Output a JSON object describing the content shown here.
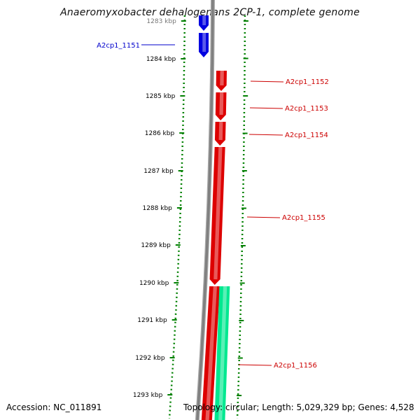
{
  "title": "Anaeromyxobacter dehalogenans 2CP-1, complete genome",
  "footer": {
    "accession_label": "Accession:",
    "accession": "NC_011891",
    "topology_label": "Topology:",
    "topology": "circular",
    "length_label": "Length:",
    "length": "5,029,329 bp",
    "genes_label": "Genes:",
    "genes": "4,528"
  },
  "scale": {
    "unit": "kbp",
    "ticks": [
      {
        "label": "1283 kbp",
        "partial": true
      },
      {
        "label": "1284 kbp"
      },
      {
        "label": "1285 kbp"
      },
      {
        "label": "1286 kbp"
      },
      {
        "label": "1287 kbp"
      },
      {
        "label": "1288 kbp"
      },
      {
        "label": "1289 kbp"
      },
      {
        "label": "1290 kbp"
      },
      {
        "label": "1291 kbp"
      },
      {
        "label": "1292 kbp"
      },
      {
        "label": "1293 kbp"
      }
    ]
  },
  "genes_list": [
    {
      "name": "A2cp1_1151",
      "strand": "reverse",
      "color": "#0000e0"
    },
    {
      "name": "A2cp1_1152",
      "strand": "reverse",
      "color": "#dd0000"
    },
    {
      "name": "A2cp1_1153",
      "strand": "reverse",
      "color": "#dd0000"
    },
    {
      "name": "A2cp1_1154",
      "strand": "reverse",
      "color": "#dd0000"
    },
    {
      "name": "A2cp1_1155",
      "strand": "reverse",
      "color": "#dd0000"
    },
    {
      "name": "A2cp1_1156",
      "strand": "forward",
      "color": "#00e890"
    }
  ],
  "colors": {
    "backbone": "#808080",
    "scale_dots": "#008000",
    "reverse_label": "#cc0000",
    "forward_label": "#0000cc"
  }
}
